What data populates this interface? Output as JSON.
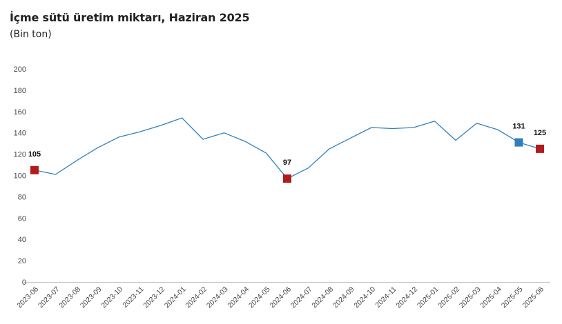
{
  "header": {
    "title": "İçme sütü üretim miktarı, Haziran 2025",
    "subtitle": "(Bin ton)"
  },
  "chart_data": {
    "type": "line",
    "title": "İçme sütü üretim miktarı, Haziran 2025",
    "subtitle": "(Bin ton)",
    "xlabel": "",
    "ylabel": "",
    "ylim": [
      0,
      200
    ],
    "yticks": [
      0,
      20,
      40,
      60,
      80,
      100,
      120,
      140,
      160,
      180,
      200
    ],
    "grid": false,
    "categories": [
      "2023-06",
      "2023-07",
      "2023-08",
      "2023-09",
      "2023-10",
      "2023-11",
      "2023-12",
      "2024-01",
      "2024-02",
      "2024-03",
      "2024-04",
      "2024-05",
      "2024-06",
      "2024-07",
      "2024-08",
      "2024-09",
      "2024-10",
      "2024-11",
      "2024-12",
      "2025-01",
      "2025-02",
      "2025-03",
      "2025-04",
      "2025-05",
      "2025-06"
    ],
    "series": [
      {
        "values": [
          105,
          101,
          114,
          126,
          136,
          141,
          147,
          154,
          134,
          140,
          132,
          121,
          97,
          107,
          125,
          135,
          145,
          144,
          145,
          151,
          133,
          149,
          143,
          131,
          125
        ],
        "color": "#2e7fbf"
      }
    ],
    "highlights": [
      {
        "category": "2023-06",
        "value": 105,
        "label": "105",
        "color": "#b01c1c"
      },
      {
        "category": "2024-06",
        "value": 97,
        "label": "97",
        "color": "#b01c1c"
      },
      {
        "category": "2025-05",
        "value": 131,
        "label": "131",
        "color": "#2e7fbf"
      },
      {
        "category": "2025-06",
        "value": 125,
        "label": "125",
        "color": "#b01c1c"
      }
    ]
  }
}
